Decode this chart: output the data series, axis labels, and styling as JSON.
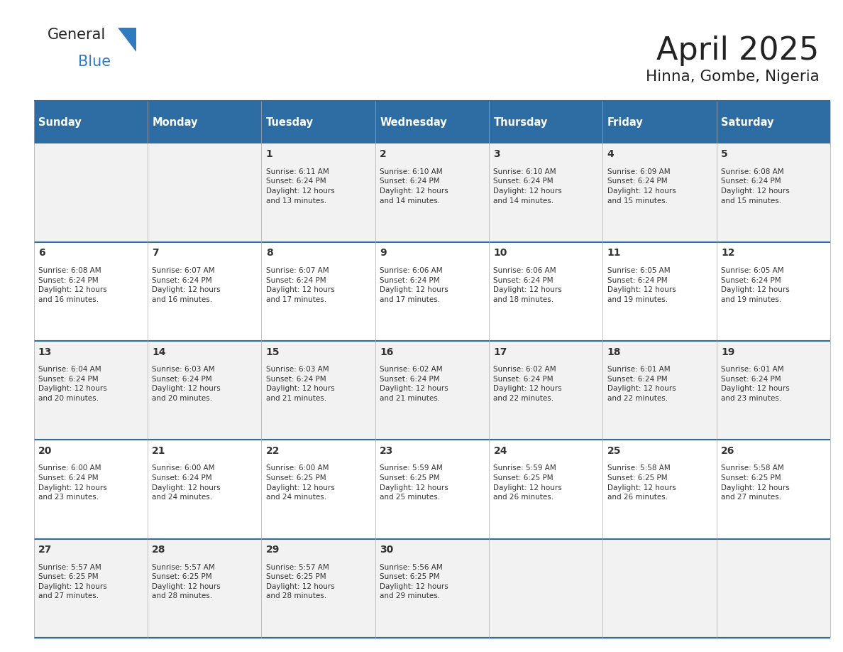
{
  "title": "April 2025",
  "subtitle": "Hinna, Gombe, Nigeria",
  "days_of_week": [
    "Sunday",
    "Monday",
    "Tuesday",
    "Wednesday",
    "Thursday",
    "Friday",
    "Saturday"
  ],
  "header_bg": "#2E6DA4",
  "header_text": "#FFFFFF",
  "row_bg_odd": "#F2F2F2",
  "row_bg_even": "#FFFFFF",
  "border_color": "#2E6DA4",
  "cell_border_color": "#AAAAAA",
  "text_color": "#333333",
  "title_color": "#222222",
  "logo_text_color": "#222222",
  "logo_blue_color": "#2E7BBF",
  "calendar_data": [
    [
      {
        "day": "",
        "info": ""
      },
      {
        "day": "",
        "info": ""
      },
      {
        "day": "1",
        "info": "Sunrise: 6:11 AM\nSunset: 6:24 PM\nDaylight: 12 hours\nand 13 minutes."
      },
      {
        "day": "2",
        "info": "Sunrise: 6:10 AM\nSunset: 6:24 PM\nDaylight: 12 hours\nand 14 minutes."
      },
      {
        "day": "3",
        "info": "Sunrise: 6:10 AM\nSunset: 6:24 PM\nDaylight: 12 hours\nand 14 minutes."
      },
      {
        "day": "4",
        "info": "Sunrise: 6:09 AM\nSunset: 6:24 PM\nDaylight: 12 hours\nand 15 minutes."
      },
      {
        "day": "5",
        "info": "Sunrise: 6:08 AM\nSunset: 6:24 PM\nDaylight: 12 hours\nand 15 minutes."
      }
    ],
    [
      {
        "day": "6",
        "info": "Sunrise: 6:08 AM\nSunset: 6:24 PM\nDaylight: 12 hours\nand 16 minutes."
      },
      {
        "day": "7",
        "info": "Sunrise: 6:07 AM\nSunset: 6:24 PM\nDaylight: 12 hours\nand 16 minutes."
      },
      {
        "day": "8",
        "info": "Sunrise: 6:07 AM\nSunset: 6:24 PM\nDaylight: 12 hours\nand 17 minutes."
      },
      {
        "day": "9",
        "info": "Sunrise: 6:06 AM\nSunset: 6:24 PM\nDaylight: 12 hours\nand 17 minutes."
      },
      {
        "day": "10",
        "info": "Sunrise: 6:06 AM\nSunset: 6:24 PM\nDaylight: 12 hours\nand 18 minutes."
      },
      {
        "day": "11",
        "info": "Sunrise: 6:05 AM\nSunset: 6:24 PM\nDaylight: 12 hours\nand 19 minutes."
      },
      {
        "day": "12",
        "info": "Sunrise: 6:05 AM\nSunset: 6:24 PM\nDaylight: 12 hours\nand 19 minutes."
      }
    ],
    [
      {
        "day": "13",
        "info": "Sunrise: 6:04 AM\nSunset: 6:24 PM\nDaylight: 12 hours\nand 20 minutes."
      },
      {
        "day": "14",
        "info": "Sunrise: 6:03 AM\nSunset: 6:24 PM\nDaylight: 12 hours\nand 20 minutes."
      },
      {
        "day": "15",
        "info": "Sunrise: 6:03 AM\nSunset: 6:24 PM\nDaylight: 12 hours\nand 21 minutes."
      },
      {
        "day": "16",
        "info": "Sunrise: 6:02 AM\nSunset: 6:24 PM\nDaylight: 12 hours\nand 21 minutes."
      },
      {
        "day": "17",
        "info": "Sunrise: 6:02 AM\nSunset: 6:24 PM\nDaylight: 12 hours\nand 22 minutes."
      },
      {
        "day": "18",
        "info": "Sunrise: 6:01 AM\nSunset: 6:24 PM\nDaylight: 12 hours\nand 22 minutes."
      },
      {
        "day": "19",
        "info": "Sunrise: 6:01 AM\nSunset: 6:24 PM\nDaylight: 12 hours\nand 23 minutes."
      }
    ],
    [
      {
        "day": "20",
        "info": "Sunrise: 6:00 AM\nSunset: 6:24 PM\nDaylight: 12 hours\nand 23 minutes."
      },
      {
        "day": "21",
        "info": "Sunrise: 6:00 AM\nSunset: 6:24 PM\nDaylight: 12 hours\nand 24 minutes."
      },
      {
        "day": "22",
        "info": "Sunrise: 6:00 AM\nSunset: 6:25 PM\nDaylight: 12 hours\nand 24 minutes."
      },
      {
        "day": "23",
        "info": "Sunrise: 5:59 AM\nSunset: 6:25 PM\nDaylight: 12 hours\nand 25 minutes."
      },
      {
        "day": "24",
        "info": "Sunrise: 5:59 AM\nSunset: 6:25 PM\nDaylight: 12 hours\nand 26 minutes."
      },
      {
        "day": "25",
        "info": "Sunrise: 5:58 AM\nSunset: 6:25 PM\nDaylight: 12 hours\nand 26 minutes."
      },
      {
        "day": "26",
        "info": "Sunrise: 5:58 AM\nSunset: 6:25 PM\nDaylight: 12 hours\nand 27 minutes."
      }
    ],
    [
      {
        "day": "27",
        "info": "Sunrise: 5:57 AM\nSunset: 6:25 PM\nDaylight: 12 hours\nand 27 minutes."
      },
      {
        "day": "28",
        "info": "Sunrise: 5:57 AM\nSunset: 6:25 PM\nDaylight: 12 hours\nand 28 minutes."
      },
      {
        "day": "29",
        "info": "Sunrise: 5:57 AM\nSunset: 6:25 PM\nDaylight: 12 hours\nand 28 minutes."
      },
      {
        "day": "30",
        "info": "Sunrise: 5:56 AM\nSunset: 6:25 PM\nDaylight: 12 hours\nand 29 minutes."
      },
      {
        "day": "",
        "info": ""
      },
      {
        "day": "",
        "info": ""
      },
      {
        "day": "",
        "info": ""
      }
    ]
  ]
}
